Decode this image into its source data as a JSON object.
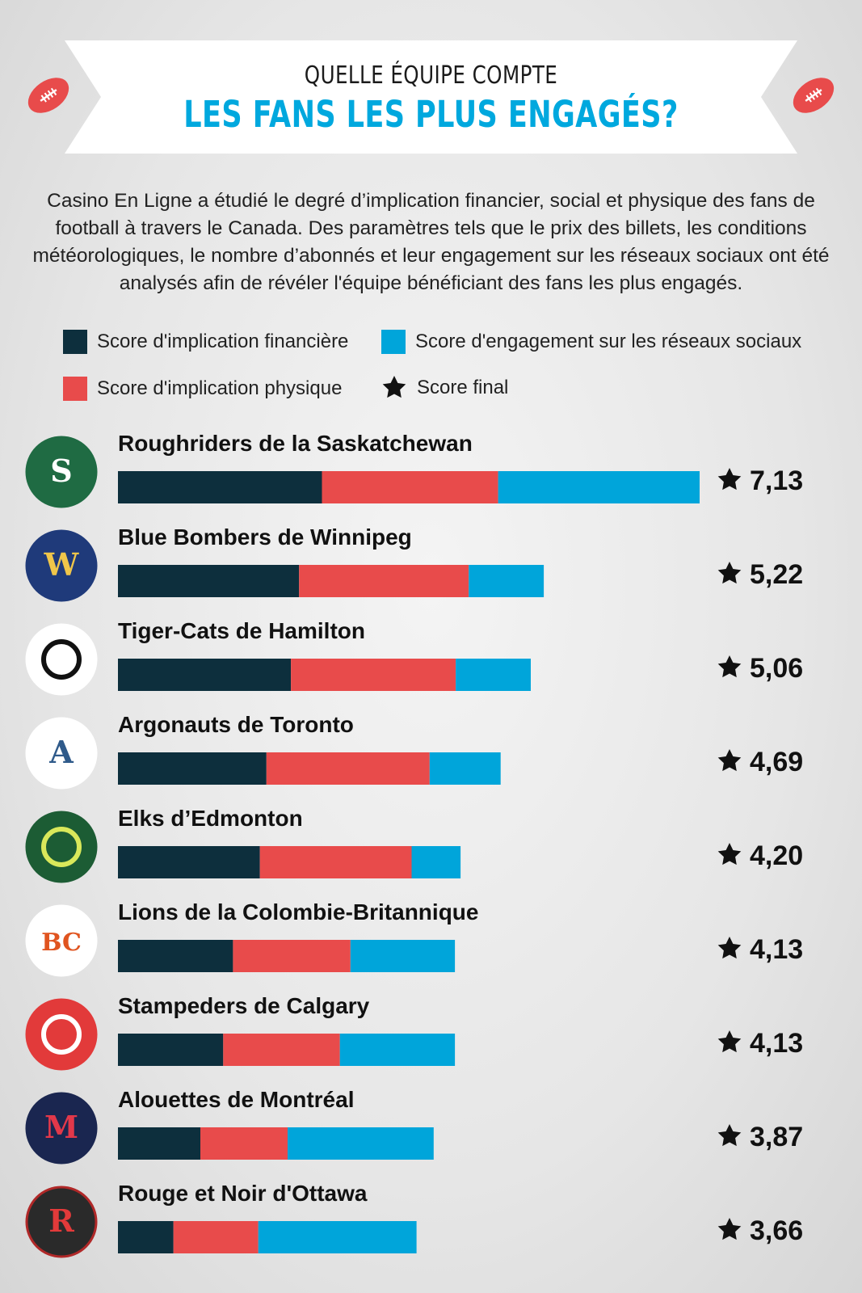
{
  "header": {
    "line1": "QUELLE ÉQUIPE COMPTE",
    "line2": "LES FANS LES PLUS ENGAGÉS?"
  },
  "intro": "Casino En Ligne a étudié le degré d’implication financier, social et physique des fans de football à travers le Canada. Des paramètres tels que le prix des billets, les conditions météorologiques, le nombre d’abonnés et leur engagement sur les réseaux sociaux ont été analysés afin de révéler l'équipe bénéficiant des fans les plus engagés.",
  "legend": {
    "financial": "Score d'implication financière",
    "social": "Score d'engagement sur les réseaux sociaux",
    "physical": "Score d'implication physique",
    "final": "Score final"
  },
  "colors": {
    "financial": "#0d2f3d",
    "physical": "#e84b4b",
    "social": "#00a5da",
    "accent": "#00a8de"
  },
  "chart_data": {
    "type": "bar",
    "orientation": "horizontal",
    "stacked": true,
    "title": "LES FANS LES PLUS ENGAGÉS?",
    "categories": [
      "Roughriders de la Saskatchewan",
      "Blue Bombers de Winnipeg",
      "Tiger-Cats de Hamilton",
      "Argonauts de Toronto",
      "Elks d’Edmonton",
      "Lions de la Colombie-Britannique",
      "Stampeders de Calgary",
      "Alouettes de Montréal",
      "Rouge et Noir d'Ottawa"
    ],
    "series": [
      {
        "name": "Score d'implication financière",
        "values": [
          2.5,
          2.22,
          2.12,
          1.82,
          1.74,
          1.41,
          1.29,
          1.01,
          0.68
        ]
      },
      {
        "name": "Score d'implication physique",
        "values": [
          2.16,
          2.08,
          2.02,
          2.0,
          1.86,
          1.44,
          1.43,
          1.07,
          1.04
        ]
      },
      {
        "name": "Score d'engagement sur les réseaux sociaux",
        "values": [
          2.47,
          0.92,
          0.92,
          0.87,
          0.6,
          1.28,
          1.41,
          1.79,
          1.94
        ]
      }
    ],
    "final_scores": [
      "7,13",
      "5,22",
      "5,06",
      "4,69",
      "4,20",
      "4,13",
      "4,13",
      "3,87",
      "3,66"
    ],
    "team_logos": [
      "roughriders-logo",
      "blue-bombers-logo",
      "tiger-cats-logo",
      "argonauts-logo",
      "elks-logo",
      "lions-logo",
      "stampeders-logo",
      "alouettes-logo",
      "redblacks-logo"
    ],
    "logo_texts": [
      "S",
      "W",
      "",
      "A",
      "",
      "BC",
      "",
      "M",
      "R"
    ],
    "legend_position": "top",
    "xlim": [
      0,
      7.13
    ]
  }
}
